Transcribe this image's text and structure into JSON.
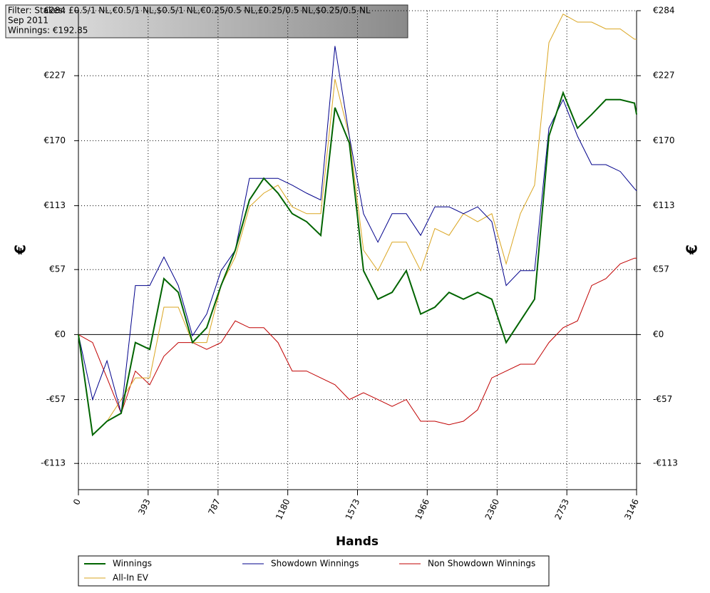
{
  "chart_data": {
    "type": "line",
    "title_lines": [
      "Filter: Stakes: £0.5/1 NL,€0.5/1 NL,$0.5/1 NL,€0.25/0.5 NL,£0.25/0.5 NL,$0.25/0.5 NL",
      "Sep 2011",
      "Winnings: €192.85"
    ],
    "x_label": "Hands",
    "y_label": "€",
    "y2_label": "€",
    "x": [
      0,
      80,
      161,
      241,
      321,
      402,
      482,
      563,
      643,
      723,
      804,
      884,
      964,
      1045,
      1125,
      1205,
      1286,
      1366,
      1446,
      1527,
      1607,
      1688,
      1768,
      1848,
      1929,
      2009,
      2089,
      2170,
      2250,
      2330,
      2411,
      2491,
      2571,
      2652,
      2732,
      2813,
      2893,
      2973,
      3054,
      3134,
      3146
    ],
    "series": [
      {
        "name": "Winnings",
        "color": "#006400",
        "width": 2,
        "values": [
          0,
          -88,
          -76,
          -69,
          -7,
          -13,
          49,
          37,
          -7,
          6,
          43,
          74,
          118,
          137,
          124,
          106,
          99,
          87,
          199,
          168,
          56,
          31,
          37,
          56,
          18,
          24,
          37,
          31,
          37,
          31,
          -7,
          12,
          31,
          174,
          212,
          181,
          193,
          206,
          206,
          203,
          193
        ]
      },
      {
        "name": "Showdown Winnings",
        "color": "#00008b",
        "width": 1,
        "values": [
          0,
          -57,
          -23,
          -69,
          43,
          43,
          68,
          43,
          -1,
          18,
          56,
          74,
          137,
          137,
          137,
          131,
          124,
          118,
          253,
          174,
          106,
          81,
          106,
          106,
          87,
          112,
          112,
          106,
          112,
          99,
          43,
          56,
          56,
          181,
          206,
          174,
          149,
          149,
          143,
          128,
          126
        ]
      },
      {
        "name": "Non Showdown Winnings",
        "color": "#c00000",
        "width": 1,
        "values": [
          0,
          -7,
          -38,
          -69,
          -32,
          -44,
          -19,
          -7,
          -7,
          -13,
          -7,
          12,
          6,
          6,
          -7,
          -32,
          -32,
          -38,
          -44,
          -57,
          -51,
          -57,
          -63,
          -57,
          -76,
          -76,
          -79,
          -76,
          -66,
          -38,
          -32,
          -26,
          -26,
          -7,
          6,
          12,
          43,
          49,
          62,
          67,
          67
        ]
      },
      {
        "name": "All-In EV",
        "color": "#daa520",
        "width": 1,
        "values": [
          0,
          -88,
          -76,
          -57,
          -38,
          -38,
          24,
          24,
          -7,
          -7,
          43,
          68,
          112,
          124,
          131,
          112,
          106,
          106,
          224,
          174,
          74,
          56,
          81,
          81,
          56,
          93,
          87,
          106,
          99,
          106,
          62,
          106,
          131,
          256,
          281,
          274,
          274,
          268,
          268,
          259,
          259
        ]
      }
    ],
    "xlim": [
      0,
      3146
    ],
    "xticks": [
      0,
      393,
      787,
      1180,
      1573,
      1966,
      2360,
      2753,
      3146
    ],
    "ylim": [
      -136,
      284
    ],
    "yticks": [
      {
        "value": -113,
        "label": "-€113"
      },
      {
        "value": -57,
        "label": "-€57"
      },
      {
        "value": 0,
        "label": "€0"
      },
      {
        "value": 57,
        "label": "€57"
      },
      {
        "value": 113,
        "label": "€113"
      },
      {
        "value": 170,
        "label": "€170"
      },
      {
        "value": 227,
        "label": "€227"
      },
      {
        "value": 284,
        "label": "€284"
      }
    ],
    "grid": true
  }
}
